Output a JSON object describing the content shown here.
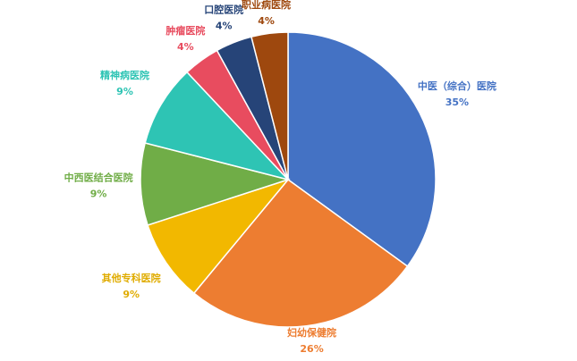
{
  "chart_data": {
    "type": "pie",
    "categories": [
      "中医（综合）医院",
      "妇幼保健院",
      "其他专科医院",
      "中西医结合医院",
      "精神病医院",
      "肿瘤医院",
      "口腔医院",
      "职业病医院"
    ],
    "values": [
      35,
      26,
      9,
      9,
      9,
      4,
      4,
      4
    ],
    "value_labels": [
      "35%",
      "26%",
      "9%",
      "9%",
      "9%",
      "4%",
      "4%",
      "4%"
    ],
    "colors": [
      "#4472c4",
      "#ed7d31",
      "#f2b800",
      "#70ad47",
      "#2ec4b4",
      "#e84c5f",
      "#264478",
      "#9e480e"
    ],
    "label_colors": [
      "#4472c4",
      "#ed7d31",
      "#e0ac00",
      "#70ad47",
      "#2ec4b4",
      "#e84c5f",
      "#264478",
      "#9e480e"
    ]
  }
}
